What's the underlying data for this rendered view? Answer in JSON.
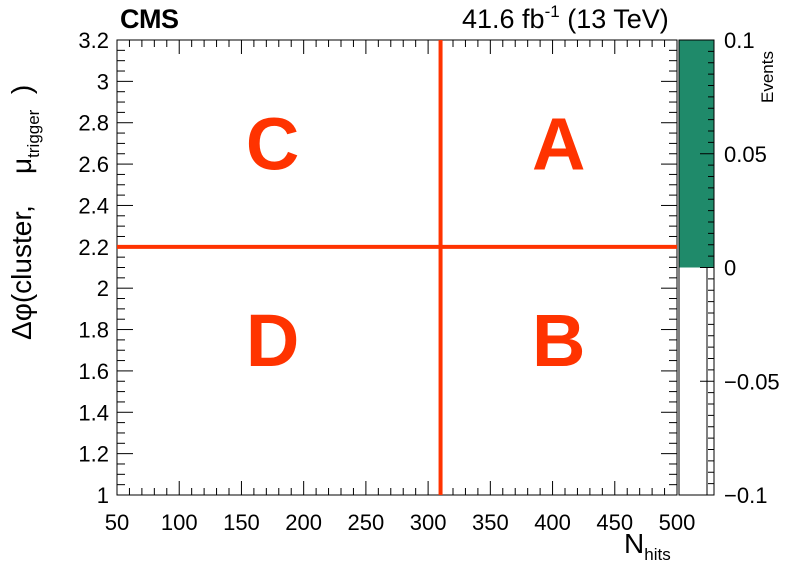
{
  "header": {
    "experiment": "CMS",
    "lumi_value": "41.6 fb",
    "lumi_exp": "-1",
    "energy": " (13 TeV)"
  },
  "axes": {
    "y_label_main": "Δφ(cluster,",
    "y_label_mu": "μ",
    "y_label_sub": "trigger",
    "y_label_close": ")",
    "x_label_main": "N",
    "x_label_sub": "hits",
    "z_label": "Events"
  },
  "colors": {
    "region_lines": "#ff3300",
    "region_text": "#ff3300",
    "palette_fill": "#1f8a6a"
  },
  "chart_data": {
    "type": "heatmap",
    "xlim": [
      50,
      500
    ],
    "ylim": [
      1,
      3.2
    ],
    "zlim": [
      -0.1,
      0.1
    ],
    "x_ticks": [
      "50",
      "100",
      "150",
      "200",
      "250",
      "300",
      "350",
      "400",
      "450",
      "500"
    ],
    "y_ticks": [
      "1",
      "1.2",
      "1.4",
      "1.6",
      "1.8",
      "2",
      "2.2",
      "2.4",
      "2.6",
      "2.8",
      "3",
      "3.2"
    ],
    "z_ticks": [
      "−0.1",
      "−0.05",
      "0",
      "0.05",
      "0.1"
    ],
    "x_cut": 310,
    "y_cut": 2.2,
    "regions": [
      {
        "label": "A",
        "x": 405,
        "y": 2.7
      },
      {
        "label": "B",
        "x": 405,
        "y": 1.75
      },
      {
        "label": "C",
        "x": 175,
        "y": 2.7
      },
      {
        "label": "D",
        "x": 175,
        "y": 1.75
      }
    ],
    "palette_level": 0,
    "grid": false
  }
}
